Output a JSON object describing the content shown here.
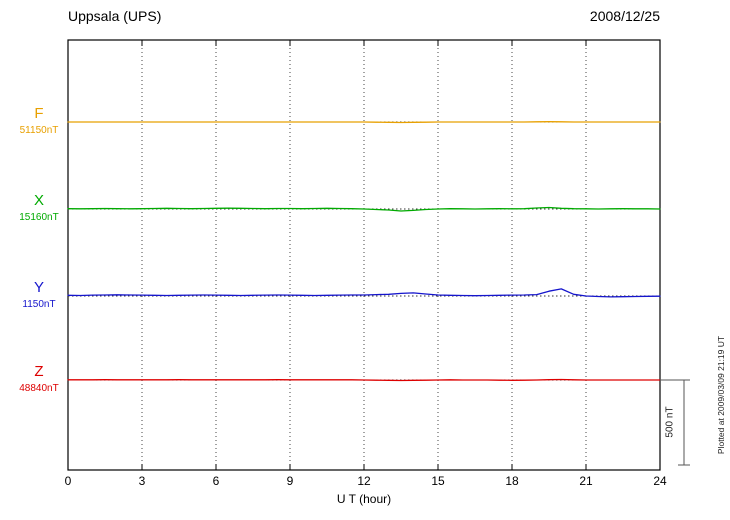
{
  "header": {
    "station": "Uppsala (UPS)",
    "date": "2008/12/25"
  },
  "x_axis_title": "U T (hour)",
  "scale_bar_label": "500 nT",
  "plotted_note": "Plotted at 2009/03/09 21:19 UT",
  "chart_data": {
    "type": "line",
    "title": "Uppsala (UPS)",
    "date": "2008/12/25",
    "xlabel": "U T (hour)",
    "xlim": [
      0,
      24
    ],
    "xticks": [
      0,
      3,
      6,
      9,
      12,
      15,
      18,
      21,
      24
    ],
    "grid": "dotted vertical lines at 3-hour ticks",
    "legend_position": "left of each trace",
    "x_step_hours": 0.5,
    "scale_bar_nt": 500,
    "series": [
      {
        "name": "F",
        "baseline_label": "51150nT",
        "color": "#e8a000",
        "unit": "nT offset from baseline",
        "offsets": [
          0,
          0,
          0,
          0,
          0,
          0,
          0,
          0,
          0,
          0,
          0,
          0,
          0,
          0,
          0,
          0,
          0,
          0,
          0,
          0,
          0,
          0,
          0,
          0,
          0,
          -1,
          -2,
          -3,
          -2,
          -1,
          0,
          0,
          0,
          0,
          0,
          0,
          0,
          0,
          1,
          2,
          1,
          0,
          0,
          0,
          0,
          0,
          0,
          0,
          0
        ]
      },
      {
        "name": "X",
        "baseline_label": "15160nT",
        "color": "#00aa00",
        "unit": "nT offset from baseline",
        "offsets": [
          2,
          1,
          2,
          3,
          2,
          1,
          2,
          3,
          4,
          3,
          2,
          3,
          4,
          5,
          4,
          3,
          2,
          3,
          3,
          2,
          3,
          4,
          3,
          2,
          0,
          -3,
          -6,
          -12,
          -8,
          -3,
          0,
          2,
          1,
          0,
          1,
          2,
          1,
          2,
          6,
          9,
          4,
          2,
          1,
          0,
          1,
          2,
          1,
          1,
          0
        ]
      },
      {
        "name": "Y",
        "baseline_label": "1150nT",
        "color": "#1515cc",
        "unit": "nT offset from baseline",
        "offsets": [
          4,
          3,
          5,
          6,
          7,
          6,
          5,
          4,
          3,
          4,
          5,
          6,
          5,
          4,
          3,
          4,
          5,
          6,
          5,
          4,
          3,
          4,
          5,
          6,
          6,
          8,
          10,
          15,
          18,
          12,
          6,
          4,
          3,
          2,
          3,
          4,
          5,
          6,
          8,
          28,
          42,
          10,
          0,
          -3,
          -5,
          -4,
          -3,
          -2,
          -1
        ]
      },
      {
        "name": "Z",
        "baseline_label": "48840nT",
        "color": "#dd0000",
        "unit": "nT offset from baseline",
        "offsets": [
          1,
          1,
          1,
          2,
          1,
          1,
          1,
          1,
          1,
          2,
          1,
          1,
          1,
          1,
          1,
          1,
          1,
          2,
          1,
          1,
          1,
          1,
          1,
          1,
          0,
          -1,
          -2,
          -3,
          -2,
          -1,
          0,
          1,
          0,
          0,
          0,
          -1,
          -2,
          -1,
          0,
          2,
          3,
          1,
          0,
          0,
          0,
          0,
          0,
          0,
          0
        ]
      }
    ]
  }
}
